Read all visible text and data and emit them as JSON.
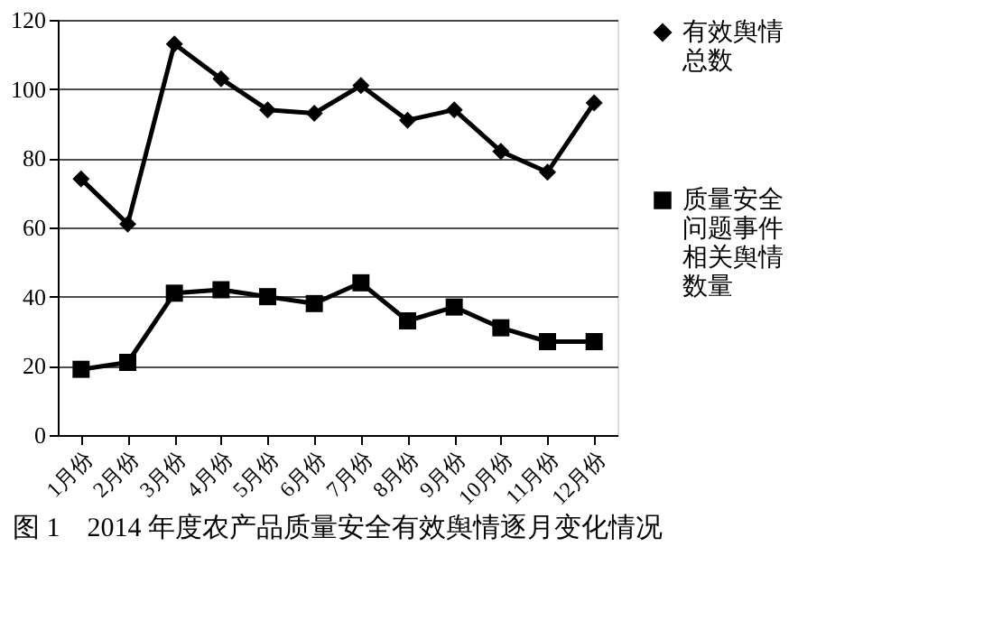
{
  "chart_data": {
    "type": "line",
    "title": "图 1　2014 年度农产品质量安全有效舆情逐月变化情况",
    "categories": [
      "1月份",
      "2月份",
      "3月份",
      "4月份",
      "5月份",
      "6月份",
      "7月份",
      "8月份",
      "9月份",
      "10月份",
      "11月份",
      "12月份"
    ],
    "series": [
      {
        "name": "有效舆情总数",
        "color": "#000000",
        "marker": "diamond",
        "values": [
          74,
          61,
          113,
          103,
          94,
          93,
          101,
          91,
          94,
          82,
          76,
          96
        ]
      },
      {
        "name": "质量安全问题事件相关舆情数量",
        "color": "#000000",
        "marker": "square",
        "values": [
          19,
          21,
          41,
          42,
          40,
          38,
          44,
          33,
          37,
          31,
          27,
          27
        ]
      }
    ],
    "ylim": [
      0,
      120
    ],
    "yticks": [
      0,
      20,
      40,
      60,
      80,
      100,
      120
    ],
    "grid": "y",
    "legend": "right",
    "line_style": "solid"
  }
}
